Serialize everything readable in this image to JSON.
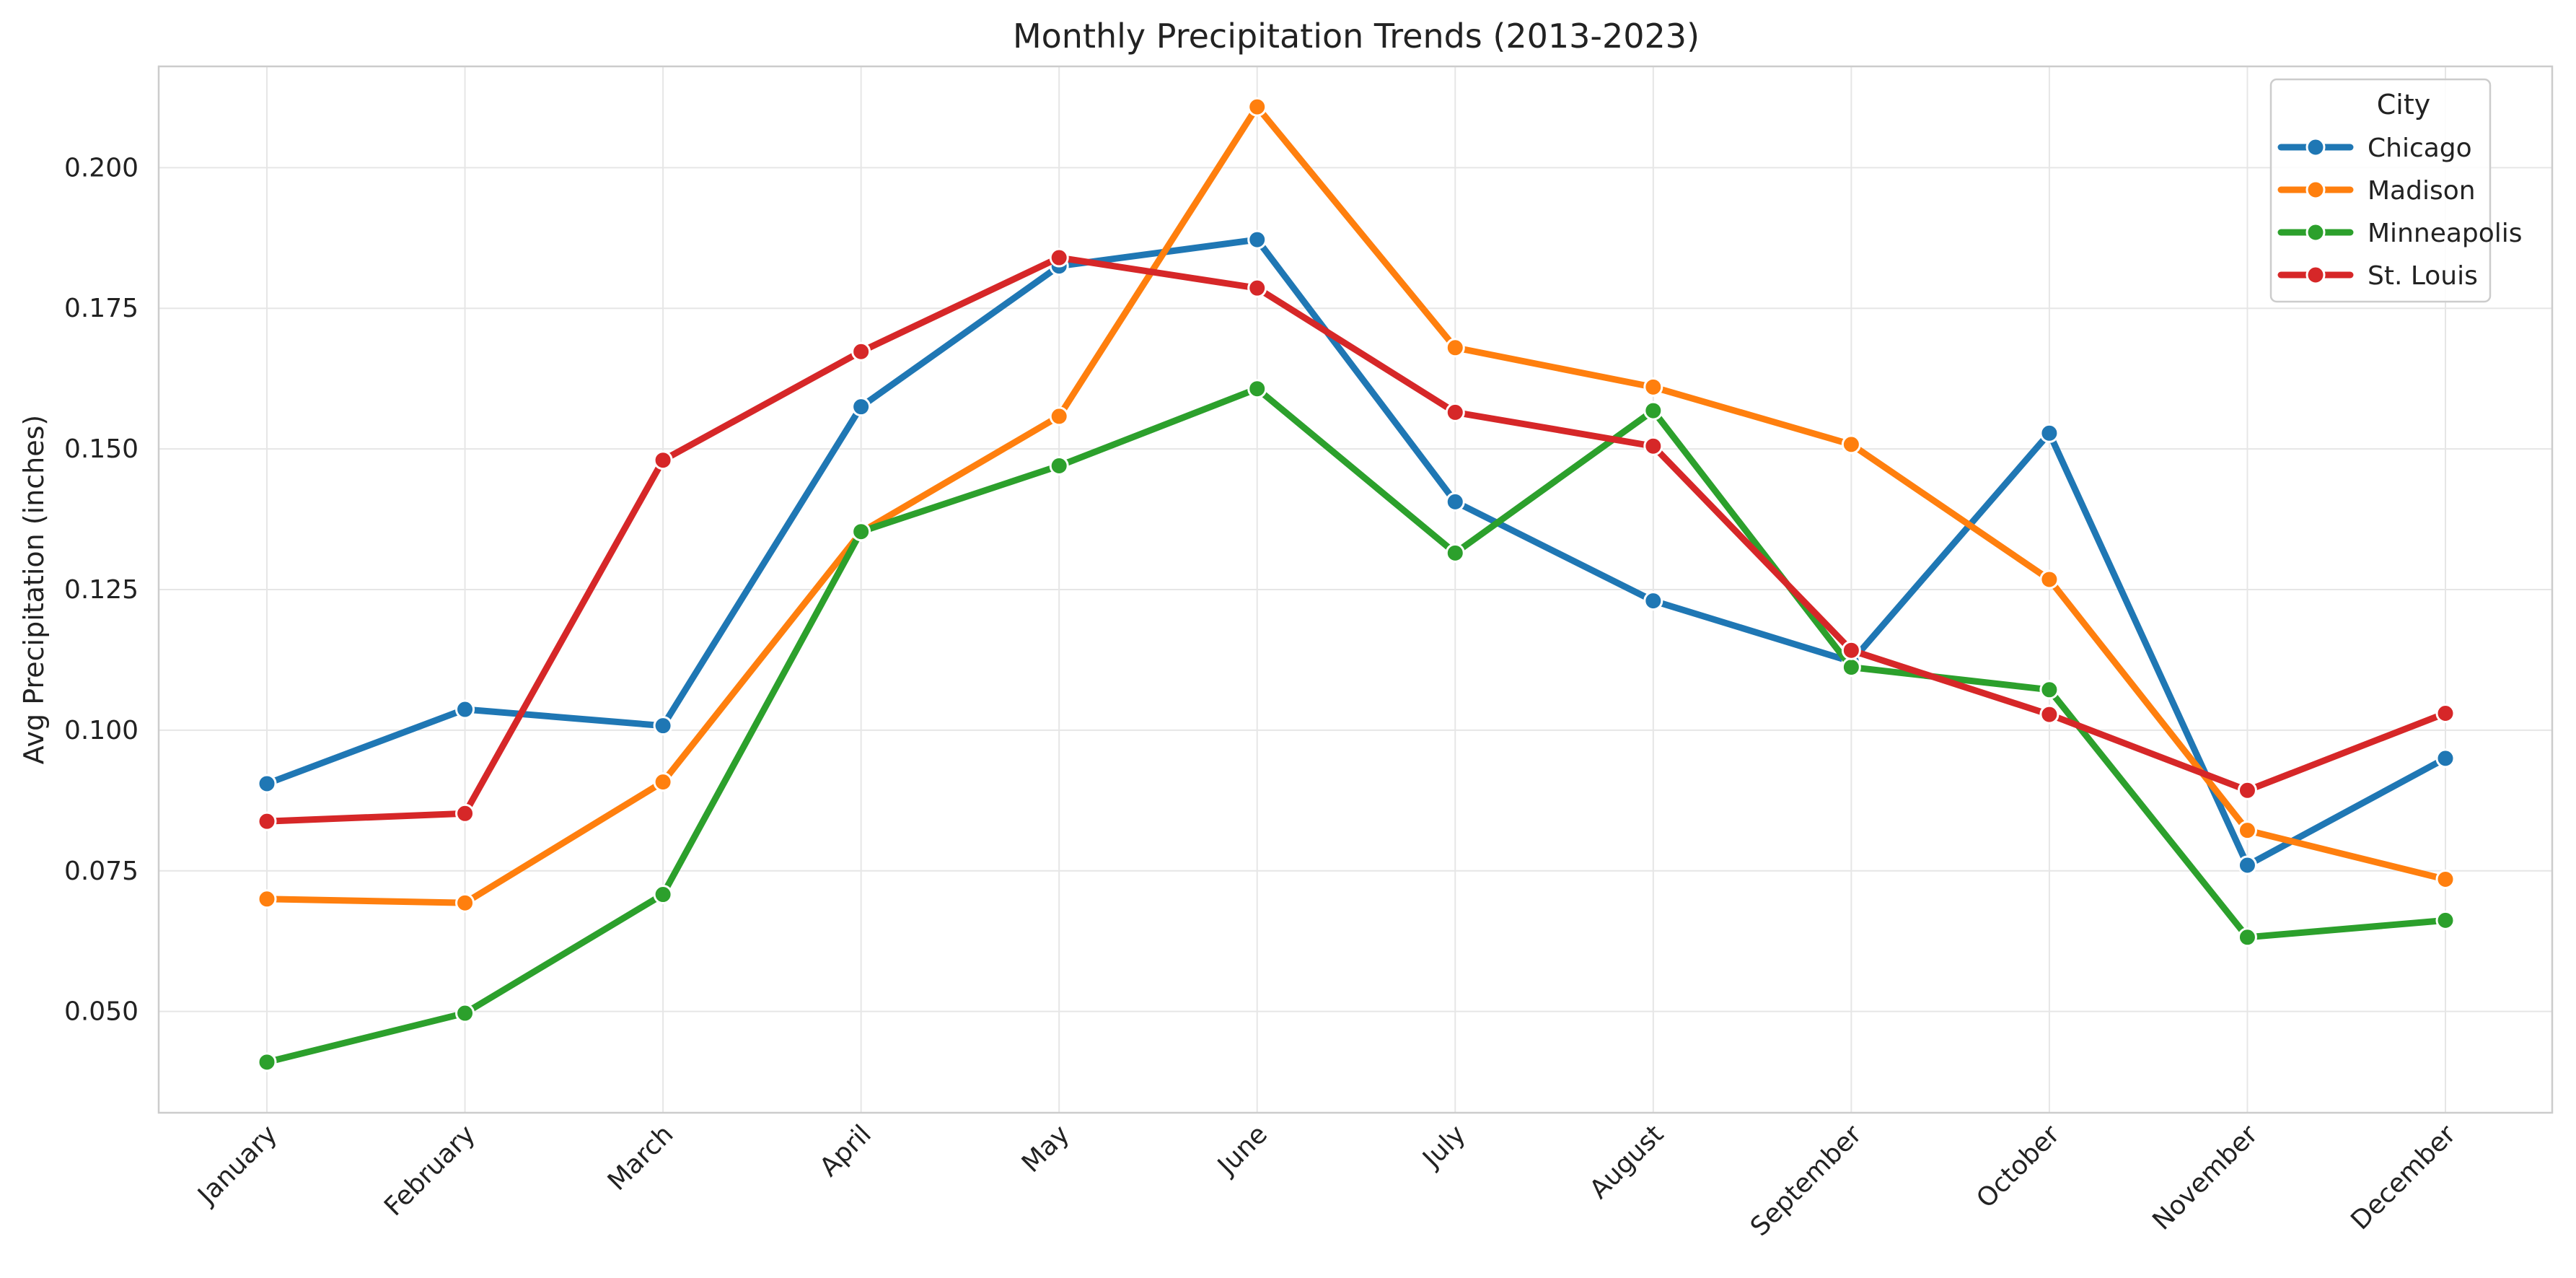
{
  "chart_data": {
    "type": "line",
    "title": "Monthly Precipitation Trends (2013-2023)",
    "xlabel": "",
    "ylabel": "Avg Precipitation (inches)",
    "categories": [
      "January",
      "February",
      "March",
      "April",
      "May",
      "June",
      "July",
      "August",
      "September",
      "October",
      "November",
      "December"
    ],
    "ylim": [
      0.032,
      0.218
    ],
    "yticks": [
      0.05,
      0.075,
      0.1,
      0.125,
      0.15,
      0.175,
      0.2
    ],
    "yticks_labels": [
      "0.050",
      "0.075",
      "0.100",
      "0.125",
      "0.150",
      "0.175",
      "0.200"
    ],
    "grid": true,
    "legend": {
      "title": "City",
      "placement": "top-right"
    },
    "series": [
      {
        "name": "Chicago",
        "color": "#1f77b4",
        "values": [
          0.0905,
          0.1037,
          0.1008,
          0.1575,
          0.1825,
          0.1872,
          0.1406,
          0.123,
          0.1122,
          0.1528,
          0.076,
          0.095
        ]
      },
      {
        "name": "Madison",
        "color": "#ff7f0e",
        "values": [
          0.07,
          0.0693,
          0.0908,
          0.1352,
          0.1558,
          0.2108,
          0.168,
          0.161,
          0.1508,
          0.1268,
          0.0822,
          0.0735
        ]
      },
      {
        "name": "Minneapolis",
        "color": "#2ca02c",
        "values": [
          0.041,
          0.0497,
          0.0708,
          0.1353,
          0.147,
          0.1607,
          0.1315,
          0.1568,
          0.1112,
          0.1072,
          0.0632,
          0.0662
        ]
      },
      {
        "name": "St. Louis",
        "color": "#d62728",
        "values": [
          0.0838,
          0.0852,
          0.148,
          0.1673,
          0.184,
          0.1786,
          0.1565,
          0.1505,
          0.1142,
          0.1028,
          0.0893,
          0.103
        ]
      }
    ]
  }
}
